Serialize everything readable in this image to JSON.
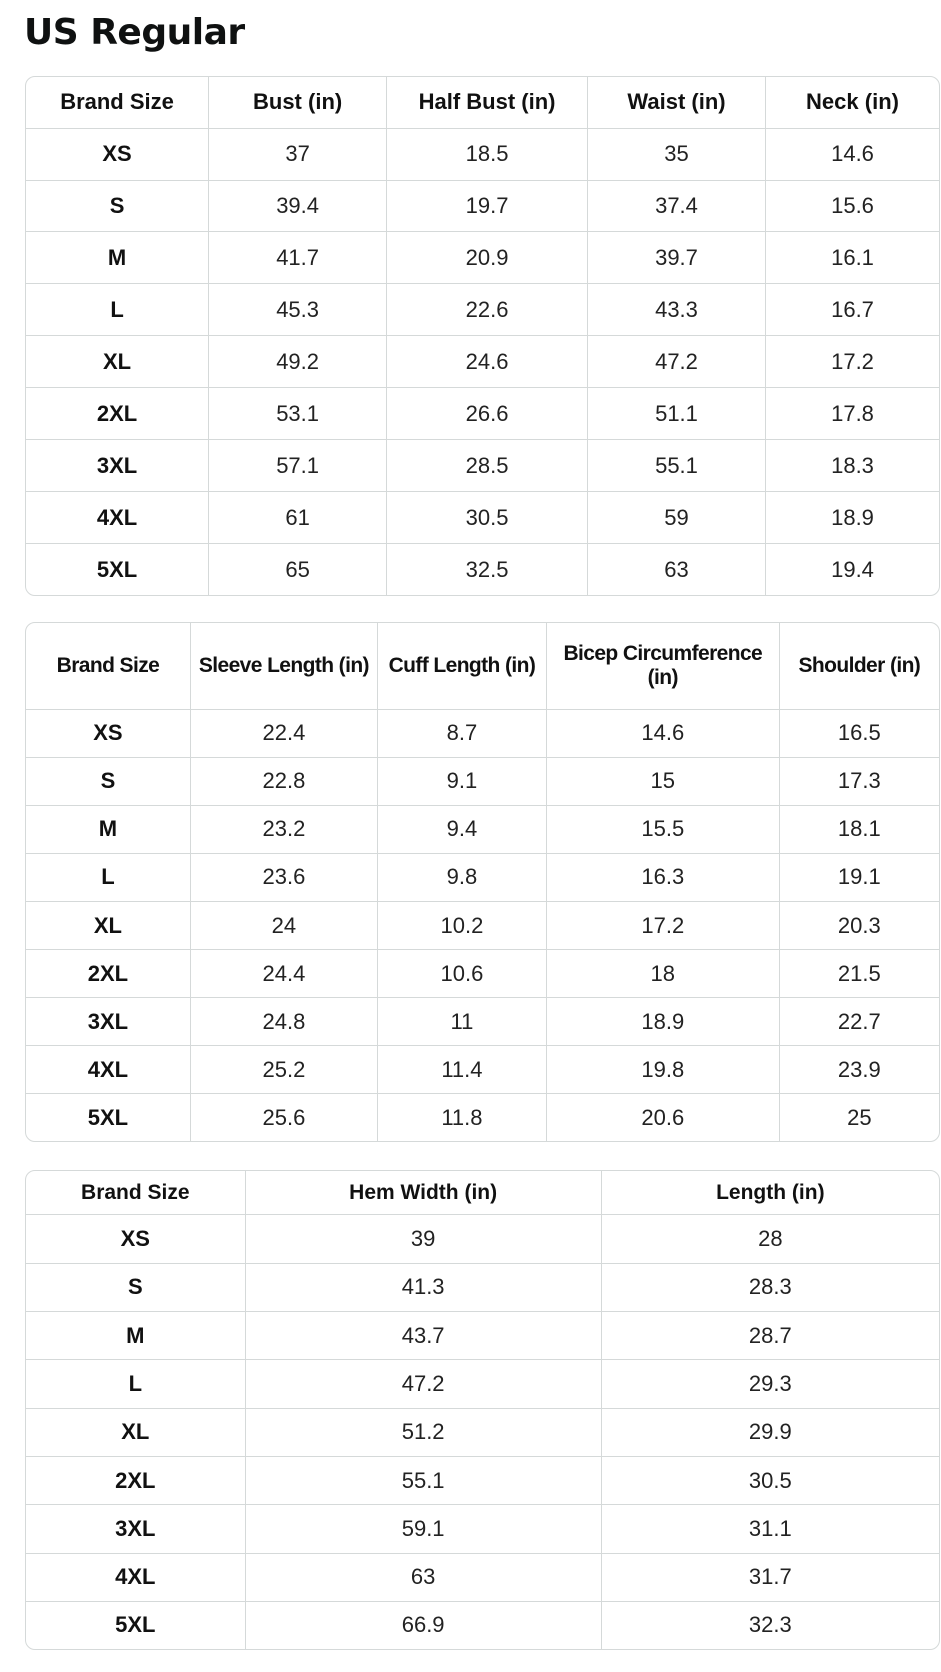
{
  "title": "US Regular",
  "tables": [
    {
      "headers": [
        "Brand Size",
        "Bust (in)",
        "Half Bust (in)",
        "Waist (in)",
        "Neck (in)"
      ],
      "rows": [
        [
          "XS",
          "37",
          "18.5",
          "35",
          "14.6"
        ],
        [
          "S",
          "39.4",
          "19.7",
          "37.4",
          "15.6"
        ],
        [
          "M",
          "41.7",
          "20.9",
          "39.7",
          "16.1"
        ],
        [
          "L",
          "45.3",
          "22.6",
          "43.3",
          "16.7"
        ],
        [
          "XL",
          "49.2",
          "24.6",
          "47.2",
          "17.2"
        ],
        [
          "2XL",
          "53.1",
          "26.6",
          "51.1",
          "17.8"
        ],
        [
          "3XL",
          "57.1",
          "28.5",
          "55.1",
          "18.3"
        ],
        [
          "4XL",
          "61",
          "30.5",
          "59",
          "18.9"
        ],
        [
          "5XL",
          "65",
          "32.5",
          "63",
          "19.4"
        ]
      ]
    },
    {
      "headers": [
        "Brand Size",
        "Sleeve Length (in)",
        "Cuff Length (in)",
        "Bicep Circumference (in)",
        "Shoulder (in)"
      ],
      "rows": [
        [
          "XS",
          "22.4",
          "8.7",
          "14.6",
          "16.5"
        ],
        [
          "S",
          "22.8",
          "9.1",
          "15",
          "17.3"
        ],
        [
          "M",
          "23.2",
          "9.4",
          "15.5",
          "18.1"
        ],
        [
          "L",
          "23.6",
          "9.8",
          "16.3",
          "19.1"
        ],
        [
          "XL",
          "24",
          "10.2",
          "17.2",
          "20.3"
        ],
        [
          "2XL",
          "24.4",
          "10.6",
          "18",
          "21.5"
        ],
        [
          "3XL",
          "24.8",
          "11",
          "18.9",
          "22.7"
        ],
        [
          "4XL",
          "25.2",
          "11.4",
          "19.8",
          "23.9"
        ],
        [
          "5XL",
          "25.6",
          "11.8",
          "20.6",
          "25"
        ]
      ]
    },
    {
      "headers": [
        "Brand Size",
        "Hem Width (in)",
        "Length (in)"
      ],
      "rows": [
        [
          "XS",
          "39",
          "28"
        ],
        [
          "S",
          "41.3",
          "28.3"
        ],
        [
          "M",
          "43.7",
          "28.7"
        ],
        [
          "L",
          "47.2",
          "29.3"
        ],
        [
          "XL",
          "51.2",
          "29.9"
        ],
        [
          "2XL",
          "55.1",
          "30.5"
        ],
        [
          "3XL",
          "59.1",
          "31.1"
        ],
        [
          "4XL",
          "63",
          "31.7"
        ],
        [
          "5XL",
          "66.9",
          "32.3"
        ]
      ]
    }
  ]
}
